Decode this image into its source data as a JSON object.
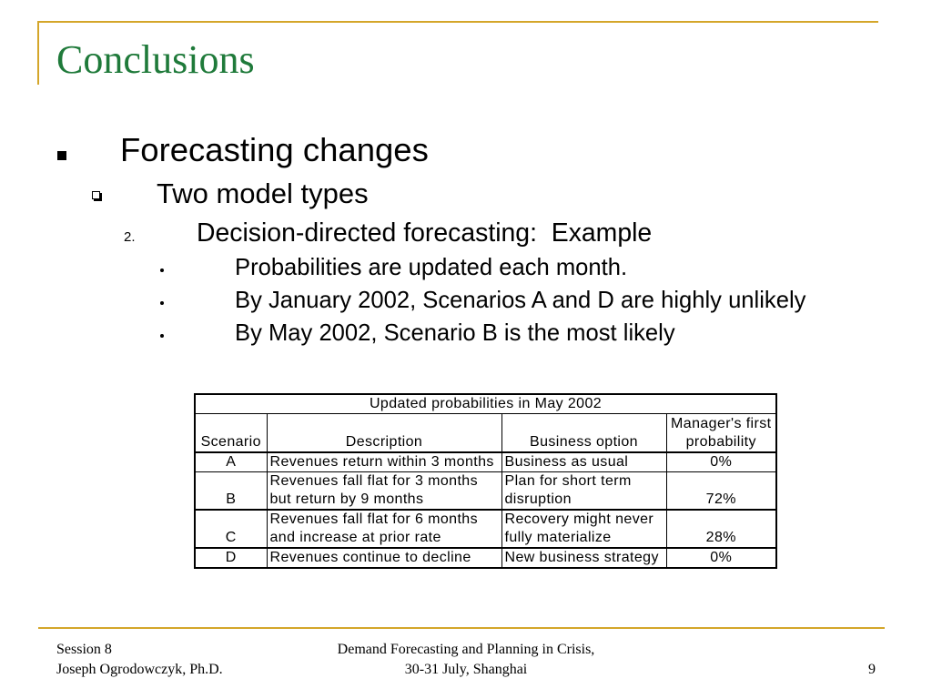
{
  "colors": {
    "accent_rule": "#D4A62A",
    "title": "#1F7A3A",
    "text": "#000000"
  },
  "icons": {
    "level1_bullet": "filled-square",
    "level2_bullet": "hollow-square",
    "level4_bullet": "dot"
  },
  "slide": {
    "title": "Conclusions",
    "level1": {
      "text": "Forecasting changes"
    },
    "level2": {
      "text": "Two model types"
    },
    "level3": {
      "number": "2.",
      "text": "Decision-directed forecasting:  Example"
    },
    "level4": [
      "Probabilities are updated each month.",
      "By January 2002, Scenarios A and D are highly unlikely",
      "By May 2002, Scenario B is the most likely"
    ]
  },
  "table": {
    "caption": "Updated probabilities in May 2002",
    "headers": {
      "scenario": "Scenario",
      "description": "Description",
      "business_option": "Business option",
      "probability": [
        "Manager's first",
        "probability"
      ]
    },
    "rows": [
      {
        "scenario": "A",
        "description": [
          "Revenues return within 3 months"
        ],
        "business_option": [
          "Business as usual"
        ],
        "probability": "0%"
      },
      {
        "scenario": "B",
        "description": [
          "Revenues fall flat for 3 months",
          "but return by 9 months"
        ],
        "business_option": [
          "Plan for short term",
          "disruption"
        ],
        "probability": "72%"
      },
      {
        "scenario": "C",
        "description": [
          "Revenues fall flat for 6 months",
          "and increase at prior rate"
        ],
        "business_option": [
          "Recovery might never",
          "fully materialize"
        ],
        "probability": "28%"
      },
      {
        "scenario": "D",
        "description": [
          "Revenues continue to decline"
        ],
        "business_option": [
          "New business strategy"
        ],
        "probability": "0%"
      }
    ]
  },
  "footer": {
    "left": [
      "Session 8",
      "Joseph Ogrodowczyk, Ph.D."
    ],
    "center": [
      "Demand Forecasting and Planning in Crisis,",
      "30-31 July, Shanghai"
    ],
    "page_number": "9"
  }
}
